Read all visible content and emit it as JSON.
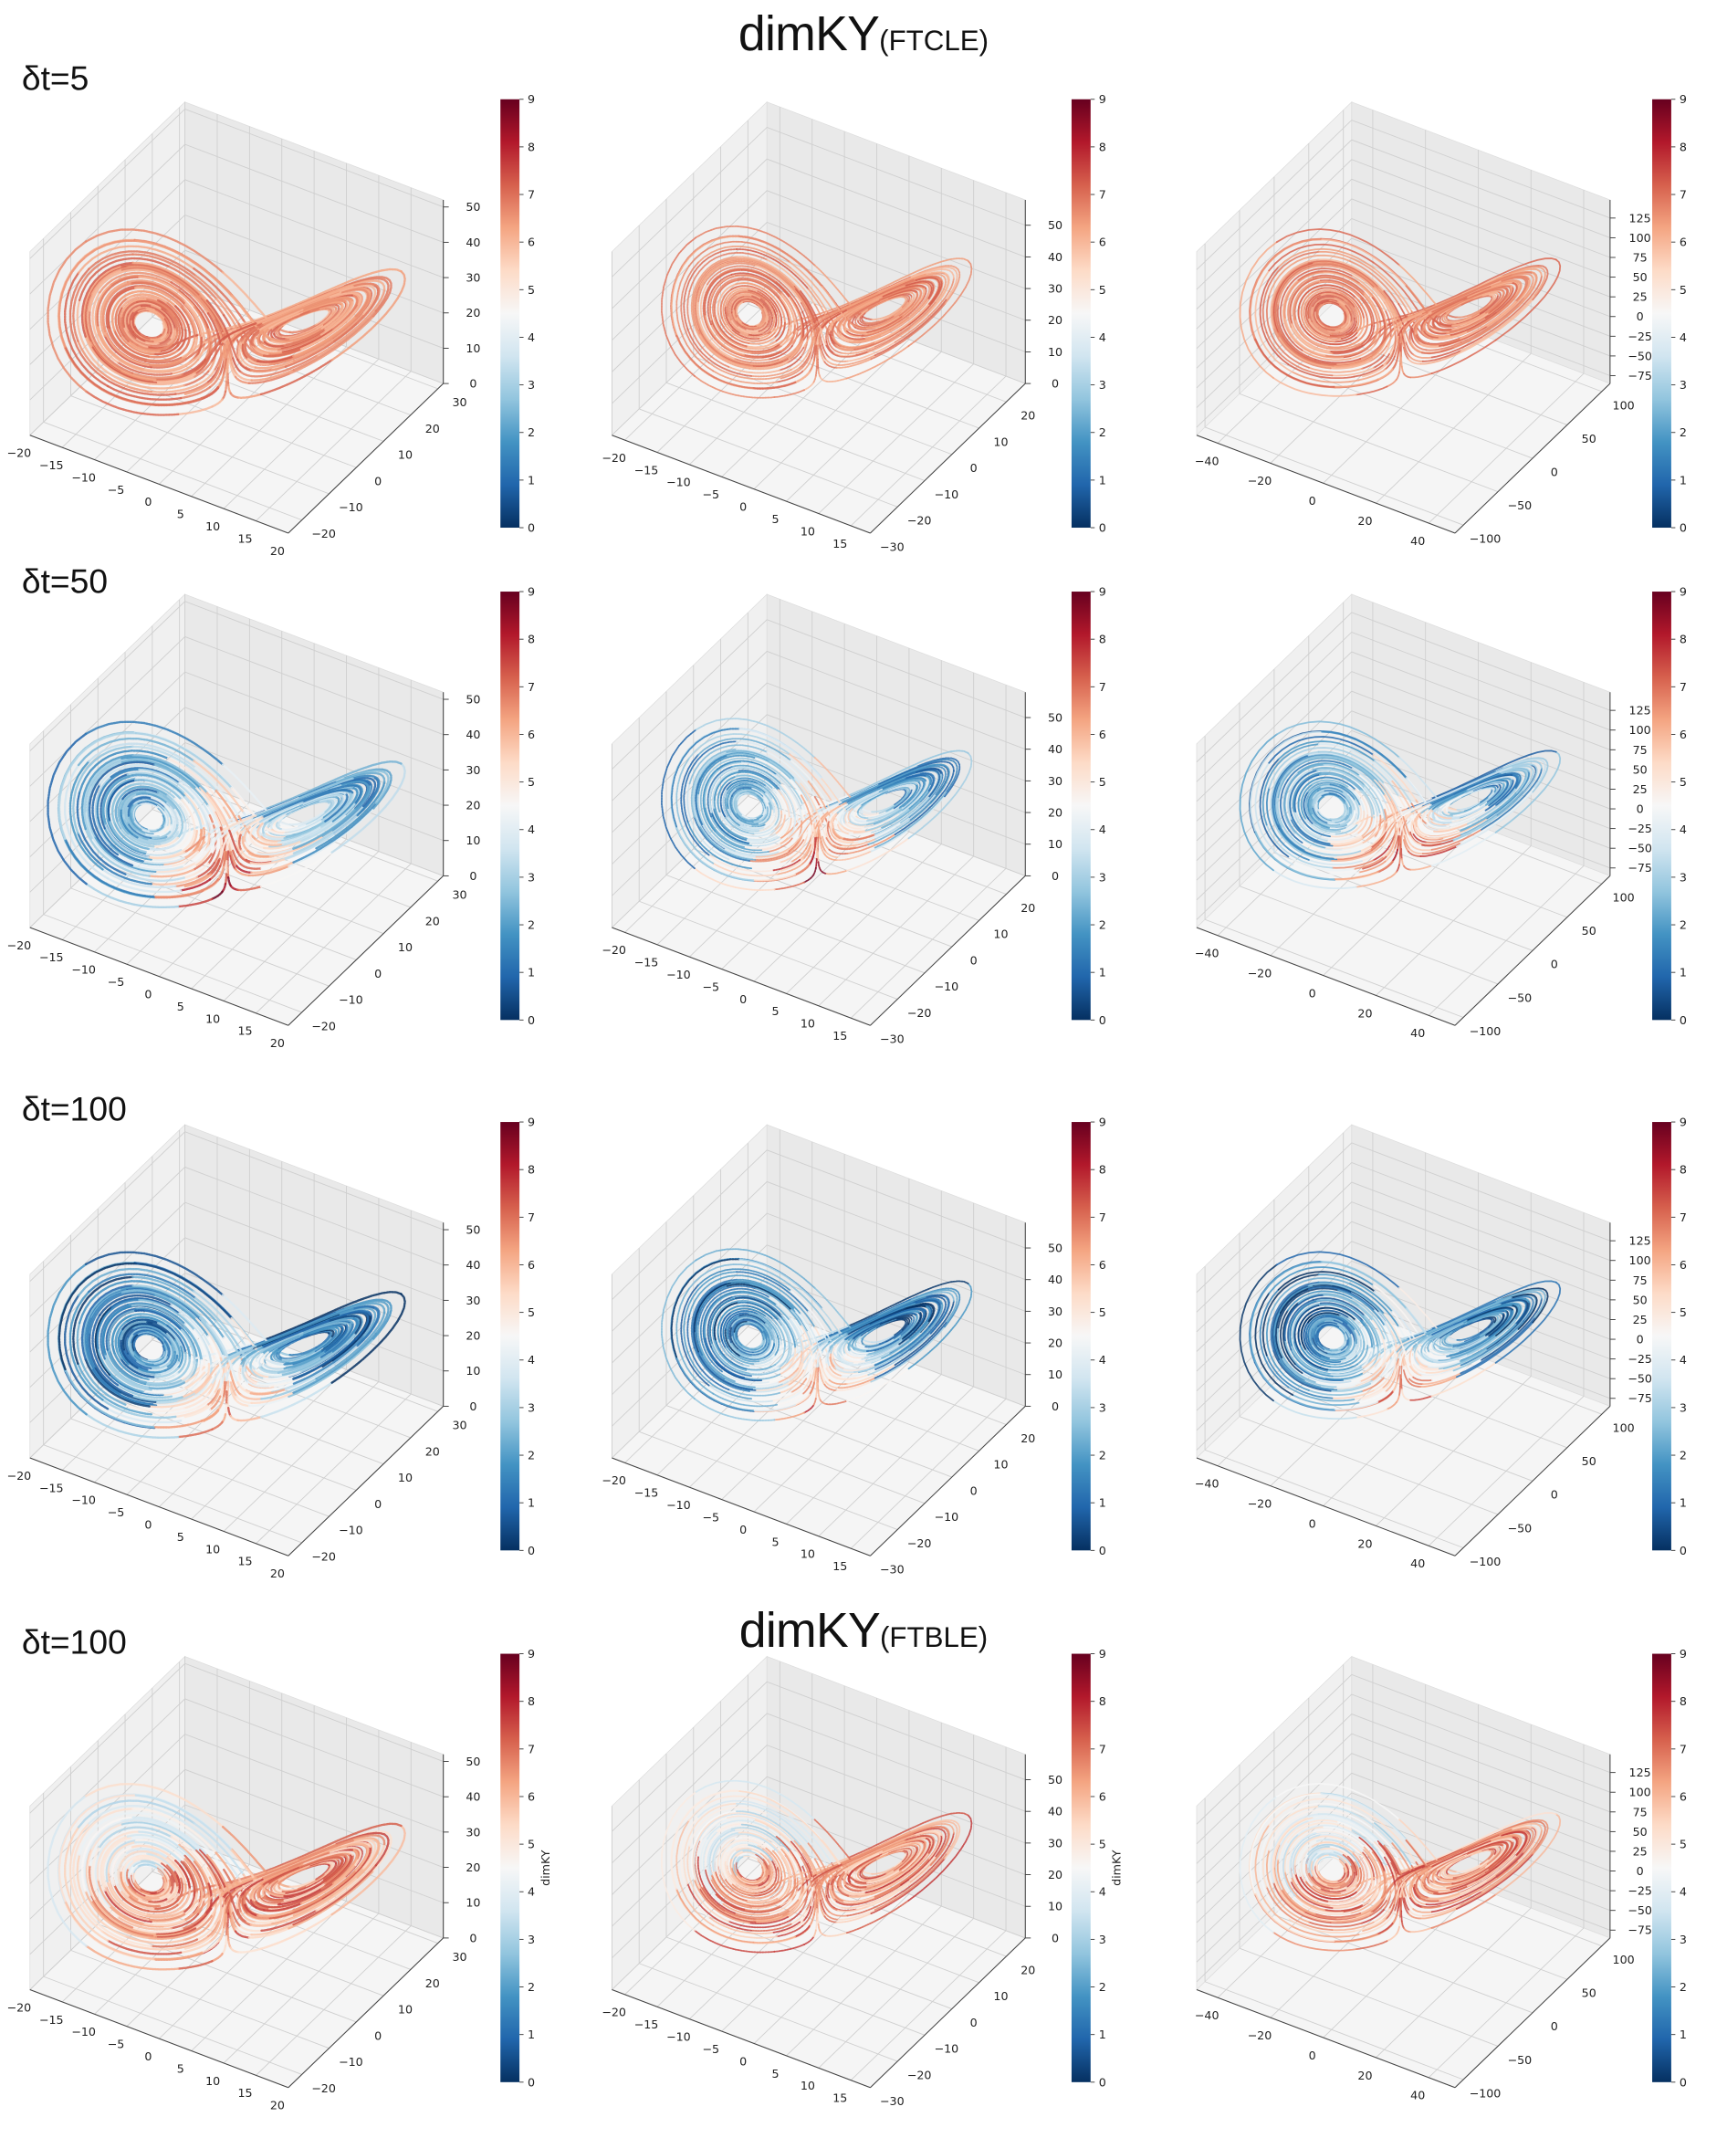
{
  "titles": {
    "top": {
      "main": "dimKY",
      "sub": "(FTCLE)"
    },
    "bottom": {
      "main": "dimKY",
      "sub": "(FTBLE)"
    }
  },
  "row_labels": [
    "δt=5",
    "δt=50",
    "δt=100",
    "δt=100"
  ],
  "colormap": {
    "name": "RdBu_r",
    "stops": [
      "#053061",
      "#2166ac",
      "#4393c3",
      "#92c5de",
      "#d1e5f0",
      "#f7f7f7",
      "#fddbc7",
      "#f4a582",
      "#d6604d",
      "#b2182b",
      "#67001f"
    ]
  },
  "colorbar": {
    "min": 0,
    "max": 9,
    "ticks": [
      0,
      1,
      2,
      3,
      4,
      5,
      6,
      7,
      8,
      9
    ]
  },
  "chart_data": [
    {
      "type": "scatter3d",
      "row": 0,
      "col": 0,
      "colorbar_label": "",
      "xlim": [
        -20,
        20
      ],
      "ylim": [
        -25,
        32
      ],
      "zlim": [
        0,
        52
      ],
      "xticks": [
        -20,
        -15,
        -10,
        -5,
        0,
        5,
        10,
        15,
        20
      ],
      "yticks": [
        -20,
        -10,
        0,
        10,
        20,
        30
      ],
      "zticks": [
        0,
        10,
        20,
        30,
        40,
        50
      ],
      "dominant_color": "red"
    },
    {
      "type": "scatter3d",
      "row": 0,
      "col": 1,
      "colorbar_label": "",
      "xlim": [
        -22,
        18
      ],
      "ylim": [
        -30,
        27
      ],
      "zlim": [
        0,
        58
      ],
      "xticks": [
        -20,
        -15,
        -10,
        -5,
        0,
        5,
        10,
        15
      ],
      "yticks": [
        -30,
        -20,
        -10,
        0,
        10,
        20
      ],
      "zticks": [
        0,
        10,
        20,
        30,
        40,
        50
      ],
      "dominant_color": "red"
    },
    {
      "type": "scatter3d",
      "row": 0,
      "col": 2,
      "colorbar_label": "",
      "xlim": [
        -48,
        50
      ],
      "ylim": [
        -112,
        112
      ],
      "zlim": [
        -85,
        148
      ],
      "xticks": [
        -40,
        -20,
        0,
        20,
        40
      ],
      "yticks": [
        -100,
        -50,
        0,
        50,
        100
      ],
      "zticks": [
        -75,
        -50,
        -25,
        0,
        25,
        50,
        75,
        100,
        125
      ],
      "dominant_color": "red"
    },
    {
      "type": "scatter3d",
      "row": 1,
      "col": 0,
      "colorbar_label": "",
      "xlim": [
        -20,
        20
      ],
      "ylim": [
        -25,
        32
      ],
      "zlim": [
        0,
        52
      ],
      "xticks": [
        -20,
        -15,
        -10,
        -5,
        0,
        5,
        10,
        15,
        20
      ],
      "yticks": [
        -20,
        -10,
        0,
        10,
        20,
        30
      ],
      "zticks": [
        0,
        10,
        20,
        30,
        40,
        50
      ],
      "dominant_color": "mixed"
    },
    {
      "type": "scatter3d",
      "row": 1,
      "col": 1,
      "colorbar_label": "",
      "xlim": [
        -22,
        18
      ],
      "ylim": [
        -30,
        27
      ],
      "zlim": [
        0,
        58
      ],
      "xticks": [
        -20,
        -15,
        -10,
        -5,
        0,
        5,
        10,
        15
      ],
      "yticks": [
        -30,
        -20,
        -10,
        0,
        10,
        20
      ],
      "zticks": [
        0,
        10,
        20,
        30,
        40,
        50
      ],
      "dominant_color": "mixed"
    },
    {
      "type": "scatter3d",
      "row": 1,
      "col": 2,
      "colorbar_label": "",
      "xlim": [
        -48,
        50
      ],
      "ylim": [
        -112,
        112
      ],
      "zlim": [
        -85,
        148
      ],
      "xticks": [
        -40,
        -20,
        0,
        20,
        40
      ],
      "yticks": [
        -100,
        -50,
        0,
        50,
        100
      ],
      "zticks": [
        -75,
        -50,
        -25,
        0,
        25,
        50,
        75,
        100,
        125
      ],
      "dominant_color": "mixed"
    },
    {
      "type": "scatter3d",
      "row": 2,
      "col": 0,
      "colorbar_label": "",
      "xlim": [
        -20,
        20
      ],
      "ylim": [
        -25,
        32
      ],
      "zlim": [
        0,
        52
      ],
      "xticks": [
        -20,
        -15,
        -10,
        -5,
        0,
        5,
        10,
        15,
        20
      ],
      "yticks": [
        -20,
        -10,
        0,
        10,
        20,
        30
      ],
      "zticks": [
        0,
        10,
        20,
        30,
        40,
        50
      ],
      "dominant_color": "blue"
    },
    {
      "type": "scatter3d",
      "row": 2,
      "col": 1,
      "colorbar_label": "",
      "xlim": [
        -22,
        18
      ],
      "ylim": [
        -30,
        27
      ],
      "zlim": [
        0,
        58
      ],
      "xticks": [
        -20,
        -15,
        -10,
        -5,
        0,
        5,
        10,
        15
      ],
      "yticks": [
        -30,
        -20,
        -10,
        0,
        10,
        20
      ],
      "zticks": [
        0,
        10,
        20,
        30,
        40,
        50
      ],
      "dominant_color": "blue"
    },
    {
      "type": "scatter3d",
      "row": 2,
      "col": 2,
      "colorbar_label": "",
      "xlim": [
        -48,
        50
      ],
      "ylim": [
        -112,
        112
      ],
      "zlim": [
        -85,
        148
      ],
      "xticks": [
        -40,
        -20,
        0,
        20,
        40
      ],
      "yticks": [
        -100,
        -50,
        0,
        50,
        100
      ],
      "zticks": [
        -75,
        -50,
        -25,
        0,
        25,
        50,
        75,
        100,
        125
      ],
      "dominant_color": "blue"
    },
    {
      "type": "scatter3d",
      "row": 3,
      "col": 0,
      "colorbar_label": "dimKY",
      "xlim": [
        -20,
        20
      ],
      "ylim": [
        -25,
        32
      ],
      "zlim": [
        0,
        52
      ],
      "xticks": [
        -20,
        -15,
        -10,
        -5,
        0,
        5,
        10,
        15,
        20
      ],
      "yticks": [
        -20,
        -10,
        0,
        10,
        20,
        30
      ],
      "zticks": [
        0,
        10,
        20,
        30,
        40,
        50
      ],
      "dominant_color": "red"
    },
    {
      "type": "scatter3d",
      "row": 3,
      "col": 1,
      "colorbar_label": "dimKY",
      "xlim": [
        -22,
        18
      ],
      "ylim": [
        -30,
        27
      ],
      "zlim": [
        0,
        58
      ],
      "xticks": [
        -20,
        -15,
        -10,
        -5,
        0,
        5,
        10,
        15
      ],
      "yticks": [
        -30,
        -20,
        -10,
        0,
        10,
        20
      ],
      "zticks": [
        0,
        10,
        20,
        30,
        40,
        50
      ],
      "dominant_color": "red"
    },
    {
      "type": "scatter3d",
      "row": 3,
      "col": 2,
      "colorbar_label": "",
      "xlim": [
        -48,
        50
      ],
      "ylim": [
        -112,
        112
      ],
      "zlim": [
        -85,
        148
      ],
      "xticks": [
        -40,
        -20,
        0,
        20,
        40
      ],
      "yticks": [
        -100,
        -50,
        0,
        50,
        100
      ],
      "zticks": [
        -75,
        -50,
        -25,
        0,
        25,
        50,
        75,
        100,
        125
      ],
      "dominant_color": "red"
    }
  ]
}
